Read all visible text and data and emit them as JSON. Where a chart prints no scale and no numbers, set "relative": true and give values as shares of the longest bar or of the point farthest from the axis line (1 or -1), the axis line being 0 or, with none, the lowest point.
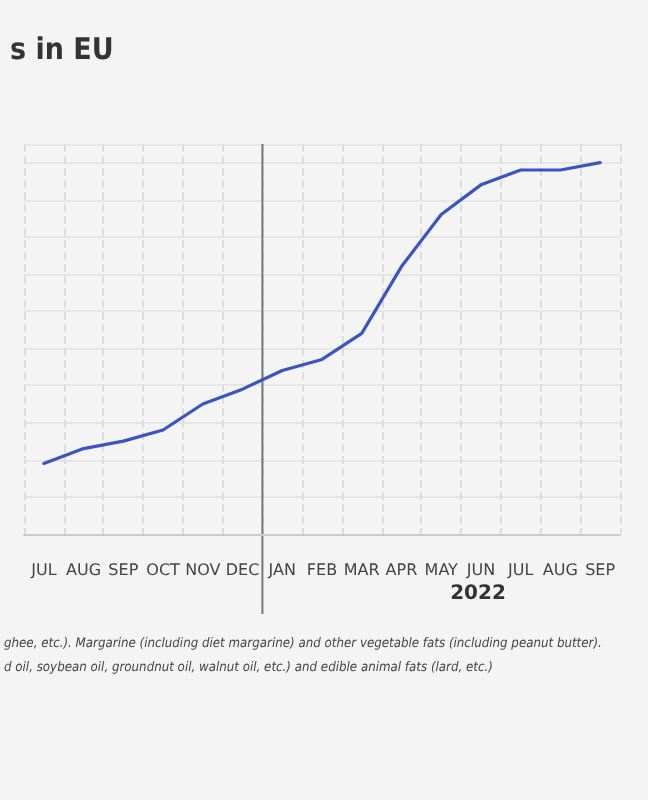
{
  "chart_data": {
    "type": "line",
    "title": "s in EU",
    "categories": [
      "JUL",
      "AUG",
      "SEP",
      "OCT",
      "NOV",
      "DEC",
      "JAN",
      "FEB",
      "MAR",
      "APR",
      "MAY",
      "JUN",
      "JUL",
      "AUG",
      "SEP"
    ],
    "series": [
      {
        "color": "#3a55c0",
        "values": [
          0.19,
          0.23,
          0.25,
          0.28,
          0.35,
          0.39,
          0.44,
          0.47,
          0.54,
          0.72,
          0.86,
          0.94,
          0.98,
          0.98,
          1
        ]
      }
    ],
    "relative": true,
    "grid": true,
    "marker": "none",
    "line_style": "solid",
    "ref_lines": [
      {
        "axis": "x",
        "value": "JAN",
        "color": "#777777"
      }
    ],
    "annotations": [
      "2022",
      "ghee, etc.). Margarine (including diet margarine) and other vegetable fats (including peanut butter).",
      "d oil, soybean oil, groundnut oil, walnut oil, etc.) and edible animal fats (lard, etc.)"
    ]
  }
}
